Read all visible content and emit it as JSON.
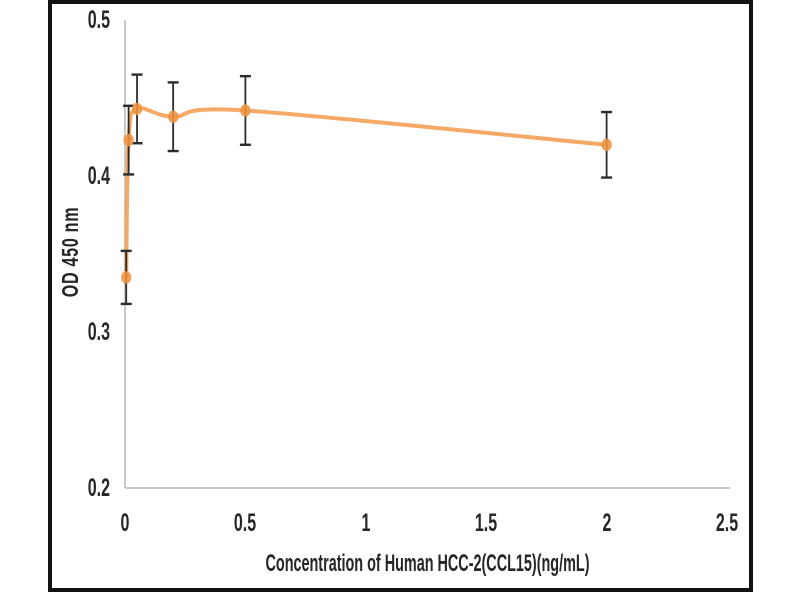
{
  "chart_data": {
    "type": "line",
    "title": "",
    "xlabel": "Concentration of Human HCC-2(CCL15)(ng/mL)",
    "ylabel": "OD 450 nm",
    "xlim": [
      0,
      2.5
    ],
    "ylim": [
      0.2,
      0.5
    ],
    "x_ticks": [
      0,
      0.5,
      1,
      1.5,
      2,
      2.5
    ],
    "x_tick_labels": [
      "0",
      "0.5",
      "1",
      "1.5",
      "2",
      "2.5"
    ],
    "y_ticks": [
      0.5,
      0.4,
      0.3,
      0.2
    ],
    "y_tick_labels": [
      "0.5",
      "0.4",
      "0.3",
      "0.2"
    ],
    "grid": false,
    "legend": "none",
    "line_style": "smooth",
    "series": [
      {
        "name": "OD 450 nm",
        "x": [
          0.005,
          0.015,
          0.05,
          0.2,
          0.5,
          2
        ],
        "y": [
          0.335,
          0.423,
          0.443,
          0.438,
          0.442,
          0.42
        ],
        "y_err": [
          0.017,
          0.022,
          0.022,
          0.022,
          0.022,
          0.021
        ]
      }
    ]
  },
  "colors": {
    "marker": "#ee9340",
    "line": "#f4a45f",
    "error_bar": "#2b2b2b",
    "axis_line": "#c9c9c9",
    "text": "#262626",
    "frame_border": "#121212",
    "background": "#ffffff"
  }
}
